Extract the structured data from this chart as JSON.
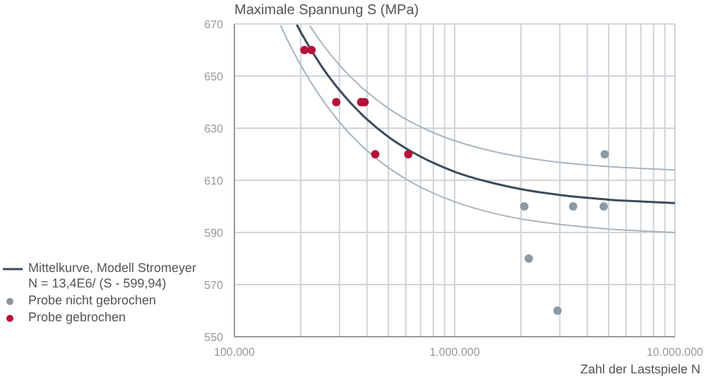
{
  "chart_data": {
    "type": "scatter",
    "ylabel": "Maximale Spannung S (MPa)",
    "xlabel": "Zahl der Lastspiele N",
    "log": "x",
    "grid": true,
    "legend": "left",
    "xlim": [
      100000,
      10000000
    ],
    "ylim": [
      550,
      670
    ],
    "xticks": [
      {
        "value": 100000,
        "label": "100.000"
      },
      {
        "value": 200000,
        "label": null
      },
      {
        "value": 300000,
        "label": null
      },
      {
        "value": 400000,
        "label": null
      },
      {
        "value": 500000,
        "label": null
      },
      {
        "value": 600000,
        "label": null
      },
      {
        "value": 700000,
        "label": null
      },
      {
        "value": 800000,
        "label": null
      },
      {
        "value": 900000,
        "label": null
      },
      {
        "value": 1000000,
        "label": "1.000.000"
      },
      {
        "value": 2000000,
        "label": null
      },
      {
        "value": 3000000,
        "label": null
      },
      {
        "value": 4000000,
        "label": null
      },
      {
        "value": 5000000,
        "label": null
      },
      {
        "value": 6000000,
        "label": null
      },
      {
        "value": 7000000,
        "label": null
      },
      {
        "value": 8000000,
        "label": null
      },
      {
        "value": 9000000,
        "label": null
      },
      {
        "value": 10000000,
        "label": "10.000.000"
      }
    ],
    "yticks": [
      550,
      570,
      590,
      610,
      630,
      650,
      670
    ],
    "series": [
      {
        "type": "line",
        "color": "#a9b4bd",
        "marker": "none",
        "x": [
          220000,
          250000,
          300000,
          400000,
          500000,
          600000,
          800000,
          1000000,
          1500000,
          2000000,
          3000000,
          4000000,
          5000000,
          7000000,
          10000000
        ],
        "values": [
          669.3,
          662.5,
          654.2,
          643.9,
          637.6,
          633.5,
          628.3,
          625.2,
          621.1,
          619.0,
          616.9,
          615.9,
          615.3,
          614.6,
          614.0
        ]
      },
      {
        "type": "line",
        "color": "#a9b4bd",
        "marker": "none",
        "x": [
          162000,
          180000,
          200000,
          250000,
          300000,
          400000,
          500000,
          600000,
          800000,
          1000000,
          1500000,
          2000000,
          3000000,
          4000000,
          5000000,
          7000000,
          10000000
        ],
        "values": [
          669.5,
          661.4,
          654.2,
          641.1,
          632.3,
          621.4,
          614.9,
          610.5,
          605.1,
          601.8,
          597.4,
          595.2,
          593.1,
          592.0,
          591.3,
          590.6,
          590.0
        ]
      },
      {
        "type": "line",
        "name": "Mittelkurve, Modell Stromeyer\nN = 13,4E6/ (S - 599,94)",
        "color": "#3d4a5c",
        "marker": "none",
        "x": [
          192000,
          200000,
          250000,
          300000,
          400000,
          500000,
          600000,
          800000,
          1000000,
          1500000,
          2000000,
          3000000,
          4000000,
          5000000,
          7000000,
          10000000
        ],
        "values": [
          669.7,
          666.9,
          653.5,
          644.6,
          633.4,
          626.7,
          622.3,
          616.7,
          613.3,
          608.9,
          606.6,
          604.4,
          603.3,
          602.6,
          601.9,
          601.3
        ]
      },
      {
        "name": "Probe nicht gebrochen",
        "color": "#8a99a3",
        "marker": "circle",
        "x": [
          4800000,
          2070000,
          3450000,
          4750000,
          2170000,
          2930000
        ],
        "values": [
          620,
          600,
          600,
          600,
          580,
          560
        ]
      },
      {
        "name": "Probe gebrochen",
        "color": "#b5123a",
        "marker": "circle",
        "x": [
          208000,
          224000,
          290000,
          376000,
          390000,
          436000,
          616000
        ],
        "values": [
          660,
          660,
          640,
          640,
          640,
          620,
          620
        ]
      }
    ]
  }
}
